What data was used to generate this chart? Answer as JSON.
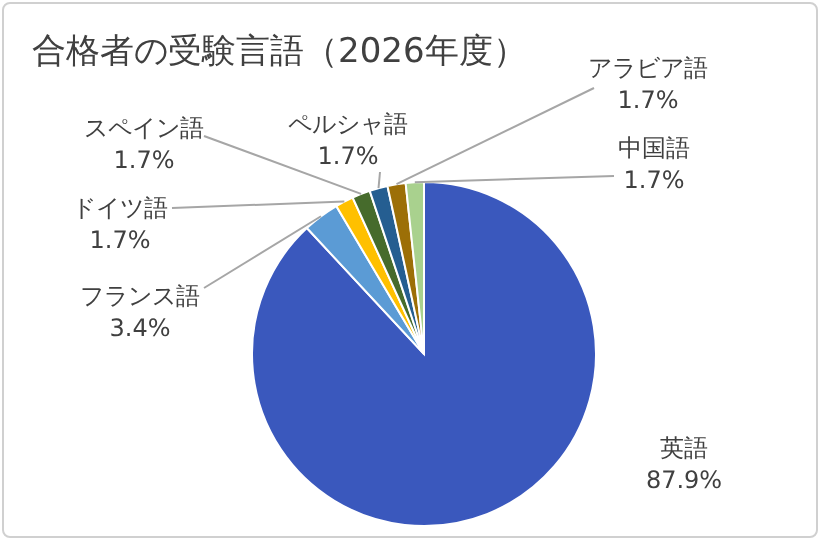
{
  "chart_data": {
    "type": "pie",
    "title": "合格者の受験言語（2026年度）",
    "categories": [
      "英語",
      "フランス語",
      "ドイツ語",
      "スペイン語",
      "ペルシャ語",
      "アラビア語",
      "中国語"
    ],
    "values": [
      87.9,
      3.4,
      1.7,
      1.7,
      1.7,
      1.7,
      1.7
    ],
    "value_labels": [
      "87.9%",
      "3.4%",
      "1.7%",
      "1.7%",
      "1.7%",
      "1.7%",
      "1.7%"
    ],
    "colors": [
      "#3a58bd",
      "#5b9bd5",
      "#ffc000",
      "#466b2c",
      "#255e91",
      "#9c6f07",
      "#a9d18e"
    ],
    "legend": false
  }
}
